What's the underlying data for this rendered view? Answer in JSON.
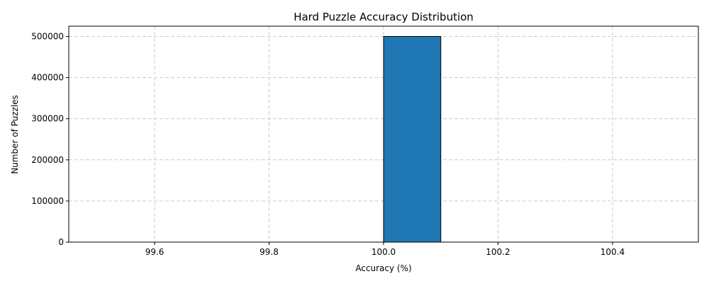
{
  "chart_data": {
    "type": "bar",
    "title": "Hard Puzzle Accuracy Distribution",
    "xlabel": "Accuracy (%)",
    "ylabel": "Number of Puzzles",
    "xlim": [
      99.45,
      100.55
    ],
    "ylim": [
      0,
      525000
    ],
    "xticks": [
      99.6,
      99.8,
      100.0,
      100.2,
      100.4
    ],
    "xtick_labels": [
      "99.6",
      "99.8",
      "100.0",
      "100.2",
      "100.4"
    ],
    "yticks": [
      0,
      100000,
      200000,
      300000,
      400000,
      500000
    ],
    "ytick_labels": [
      "0",
      "100000",
      "200000",
      "300000",
      "400000",
      "500000"
    ],
    "bins": [
      {
        "x0": 99.5,
        "x1": 99.6,
        "value": 0
      },
      {
        "x0": 99.6,
        "x1": 99.7,
        "value": 0
      },
      {
        "x0": 99.7,
        "x1": 99.8,
        "value": 0
      },
      {
        "x0": 99.8,
        "x1": 99.9,
        "value": 0
      },
      {
        "x0": 99.9,
        "x1": 100.0,
        "value": 0
      },
      {
        "x0": 100.0,
        "x1": 100.1,
        "value": 500000
      },
      {
        "x0": 100.1,
        "x1": 100.2,
        "value": 0
      },
      {
        "x0": 100.2,
        "x1": 100.3,
        "value": 0
      },
      {
        "x0": 100.3,
        "x1": 100.4,
        "value": 0
      },
      {
        "x0": 100.4,
        "x1": 100.5,
        "value": 0
      }
    ],
    "grid": true,
    "bar_color": "#1f77b4",
    "edge_color": "#000000",
    "grid_color": "#cccccc"
  }
}
